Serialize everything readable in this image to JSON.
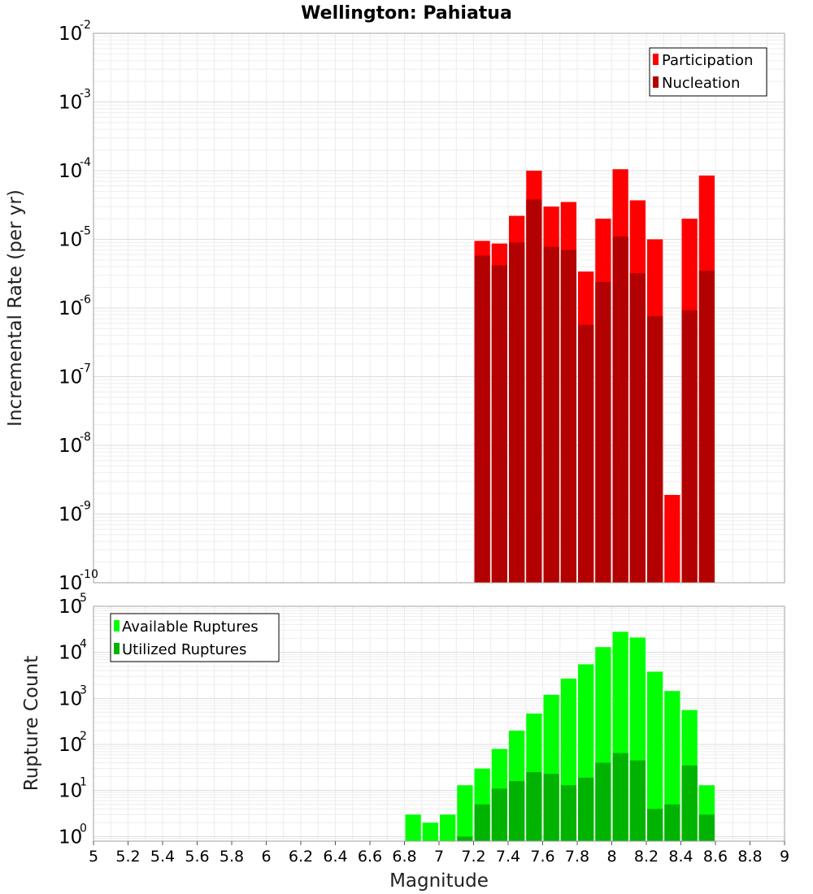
{
  "figure_title": "Wellington: Pahiatua",
  "chart_data": [
    {
      "type": "bar",
      "panel": "top",
      "ylabel": "Incremental Rate (per yr)",
      "yscale": "log",
      "ylim_exp": [
        -10,
        -2
      ],
      "xlim": [
        5,
        9
      ],
      "x": [
        7.25,
        7.35,
        7.45,
        7.55,
        7.65,
        7.75,
        7.85,
        7.95,
        8.05,
        8.15,
        8.25,
        8.35,
        8.45,
        8.55
      ],
      "legend_position": "top-right",
      "series": [
        {
          "name": "Participation",
          "color": "#ff0000",
          "values": [
            9.5e-06,
            8.7e-06,
            2.2e-05,
            0.0001,
            3e-05,
            3.5e-05,
            3.4e-06,
            2e-05,
            0.000105,
            3.7e-05,
            1e-05,
            1.9e-09,
            2e-05,
            8.5e-05
          ]
        },
        {
          "name": "Nucleation",
          "color": "#b30000",
          "values": [
            5.8e-06,
            4.2e-06,
            9e-06,
            3.8e-05,
            7.8e-06,
            7e-06,
            5.7e-07,
            2.4e-06,
            1.1e-05,
            3.2e-06,
            7.6e-07,
            0,
            9.3e-07,
            3.5e-06
          ]
        }
      ]
    },
    {
      "type": "bar",
      "panel": "bottom",
      "ylabel": "Rupture Count",
      "yscale": "log",
      "ylim_exp": [
        -0.1,
        5
      ],
      "xlim": [
        5,
        9
      ],
      "xlabel": "Magnitude",
      "xticks": [
        "5",
        "5.2",
        "5.4",
        "5.6",
        "5.8",
        "6",
        "6.2",
        "6.4",
        "6.6",
        "6.8",
        "7",
        "7.2",
        "7.4",
        "7.6",
        "7.8",
        "8",
        "8.2",
        "8.4",
        "8.6",
        "8.8",
        "9"
      ],
      "x": [
        6.85,
        6.95,
        7.05,
        7.15,
        7.25,
        7.35,
        7.45,
        7.55,
        7.65,
        7.75,
        7.85,
        7.95,
        8.05,
        8.15,
        8.25,
        8.35,
        8.45,
        8.55
      ],
      "legend_position": "top-left",
      "series": [
        {
          "name": "Available Ruptures",
          "color": "#00ff00",
          "values": [
            3,
            2,
            3,
            13,
            30,
            80,
            200,
            470,
            1200,
            2700,
            5500,
            13000,
            28000,
            21000,
            3800,
            1450,
            560,
            13
          ]
        },
        {
          "name": "Utilized Ruptures",
          "color": "#00b300",
          "values": [
            0,
            0,
            0,
            1,
            5,
            11,
            16,
            25,
            23,
            13,
            19,
            40,
            65,
            45,
            4,
            5,
            35,
            3
          ]
        }
      ]
    }
  ]
}
